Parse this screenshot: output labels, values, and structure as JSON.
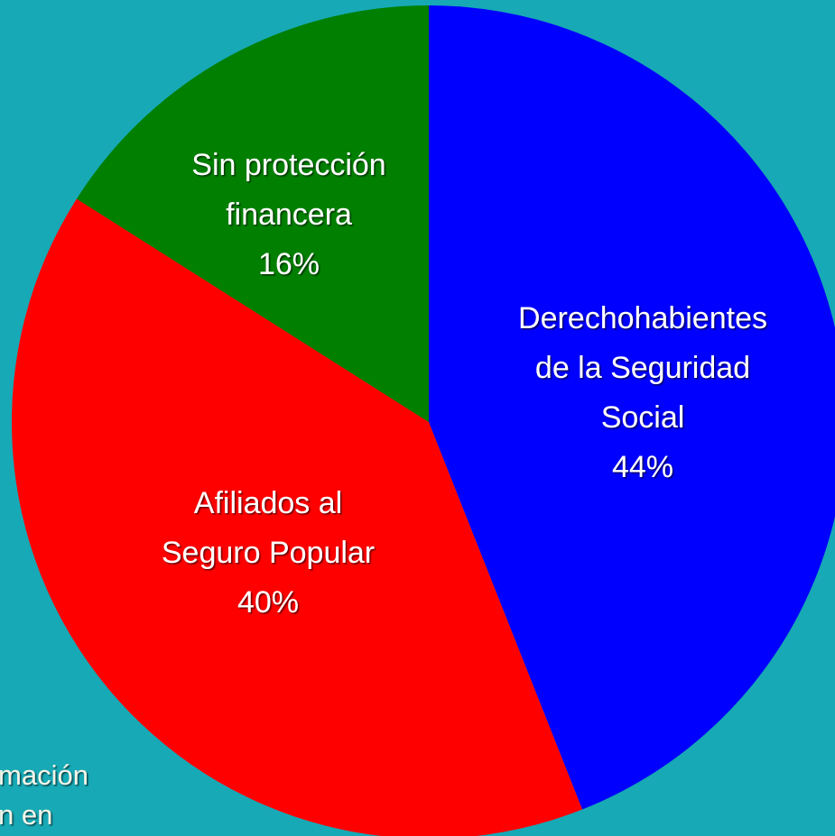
{
  "chart_data": {
    "type": "pie",
    "categories": [
      [
        "Derechohabientes",
        "de la Seguridad",
        "Social"
      ],
      [
        "Afiliados al",
        "Seguro Popular"
      ],
      [
        "Sin protección",
        "financera"
      ]
    ],
    "values": [
      44,
      40,
      16
    ],
    "value_labels": [
      "44%",
      "40%",
      "16%"
    ],
    "colors": [
      "#0000ff",
      "#ff0000",
      "#007f00"
    ],
    "annotations": [
      "mación",
      "n en"
    ]
  }
}
